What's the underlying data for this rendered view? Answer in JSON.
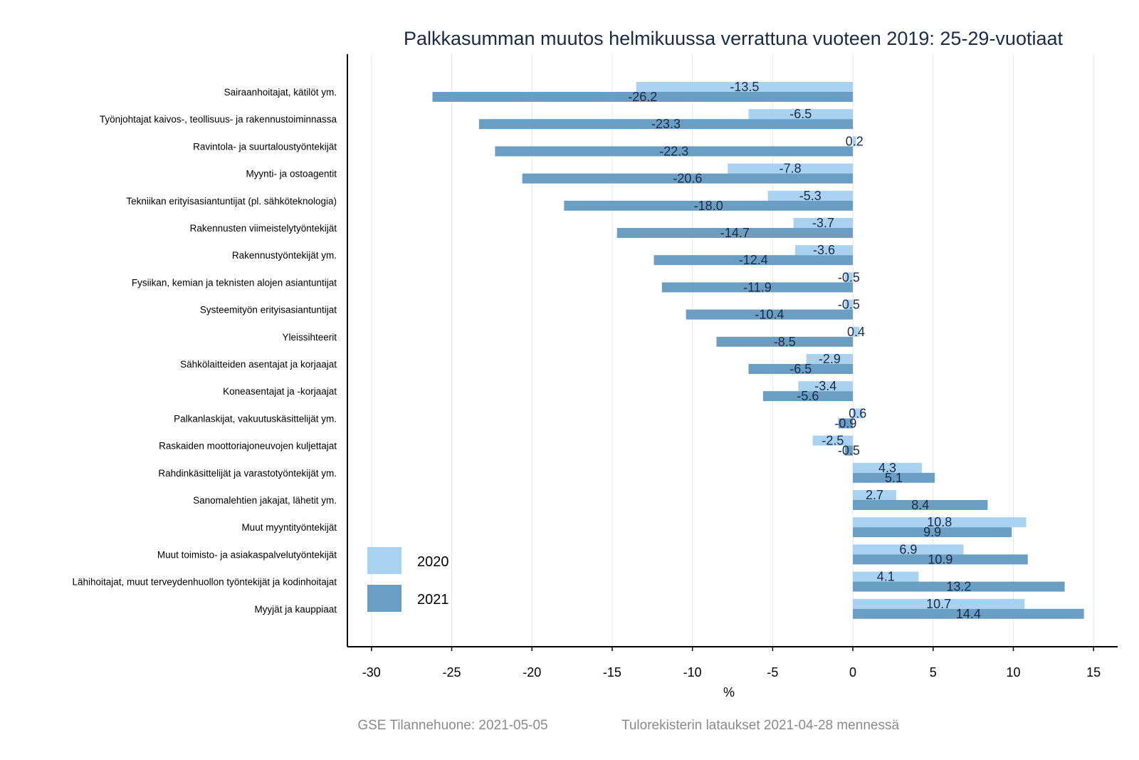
{
  "chart_data": {
    "type": "bar",
    "orientation": "horizontal",
    "title": "Palkkasumman muutos helmikuussa verrattuna vuoteen 2019: 25-29-vuotiaat",
    "xlabel": "%",
    "ylabel": "",
    "xlim": [
      -31.5,
      16.5
    ],
    "xticks": [
      -30,
      -25,
      -20,
      -15,
      -10,
      -5,
      0,
      5,
      10,
      15
    ],
    "xtick_labels": [
      "-30",
      "-25",
      "-20",
      "-15",
      "-10",
      "-5",
      "0",
      "5",
      "10",
      "15"
    ],
    "grid": "vertical",
    "legend_position": "bottom-left",
    "categories": [
      "Sairaanhoitajat, kätilöt ym.",
      "Työnjohtajat kaivos-, teollisuus- ja rakennustoiminnassa",
      "Ravintola- ja suurtaloustyöntekijät",
      "Myynti- ja ostoagentit",
      "Tekniikan erityisasiantuntijat (pl. sähköteknologia)",
      "Rakennusten viimeistelytyöntekijät",
      "Rakennustyöntekijät ym.",
      "Fysiikan, kemian ja teknisten alojen asiantuntijat",
      "Systeemityön erityisasiantuntijat",
      "Yleissihteerit",
      "Sähkölaitteiden asentajat ja korjaajat",
      "Koneasentajat ja -korjaajat",
      "Palkanlaskijat, vakuutuskäsittelijät ym.",
      "Raskaiden moottoriajoneuvojen kuljettajat",
      "Rahdinkäsittelijät ja varastotyöntekijät ym.",
      "Sanomalehtien jakajat, lähetit ym.",
      "Muut myyntityöntekijät",
      "Muut toimisto- ja asiakaspalvelutyöntekijät",
      "Lähihoitajat, muut terveydenhuollon työntekijät ja kodinhoitajat",
      "Myyjät ja kauppiaat"
    ],
    "series": [
      {
        "name": "2020",
        "color": "#a9d1f0",
        "values": [
          -13.5,
          -6.5,
          0.2,
          -7.8,
          -5.3,
          -3.7,
          -3.6,
          -0.5,
          -0.5,
          0.4,
          -2.9,
          -3.4,
          0.6,
          -2.5,
          4.3,
          2.7,
          10.8,
          6.9,
          4.1,
          10.7
        ],
        "labels": [
          "-13.5",
          "-6.5",
          "0.2",
          "-7.8",
          "-5.3",
          "-3.7",
          "-3.6",
          "-0.5",
          "-0.5",
          "0.4",
          "-2.9",
          "-3.4",
          "0.6",
          "-2.5",
          "4.3",
          "2.7",
          "10.8",
          "6.9",
          "4.1",
          "10.7"
        ]
      },
      {
        "name": "2021",
        "color": "#6a9fc3",
        "values": [
          -26.2,
          -23.3,
          -22.3,
          -20.6,
          -18.0,
          -14.7,
          -12.4,
          -11.9,
          -10.4,
          -8.5,
          -6.5,
          -5.6,
          -0.9,
          -0.5,
          5.1,
          8.4,
          9.9,
          10.9,
          13.2,
          14.4
        ],
        "labels": [
          "-26.2",
          "-23.3",
          "-22.3",
          "-20.6",
          "-18.0",
          "-14.7",
          "-12.4",
          "-11.9",
          "-10.4",
          "-8.5",
          "-6.5",
          "-5.6",
          "-0.9",
          "-0.5",
          "5.1",
          "8.4",
          "9.9",
          "10.9",
          "13.2",
          "14.4"
        ]
      }
    ]
  },
  "footer": {
    "source": "GSE Tilannehuone: 2021-05-05",
    "note": "Tulorekisterin lataukset 2021-04-28 mennessä"
  }
}
